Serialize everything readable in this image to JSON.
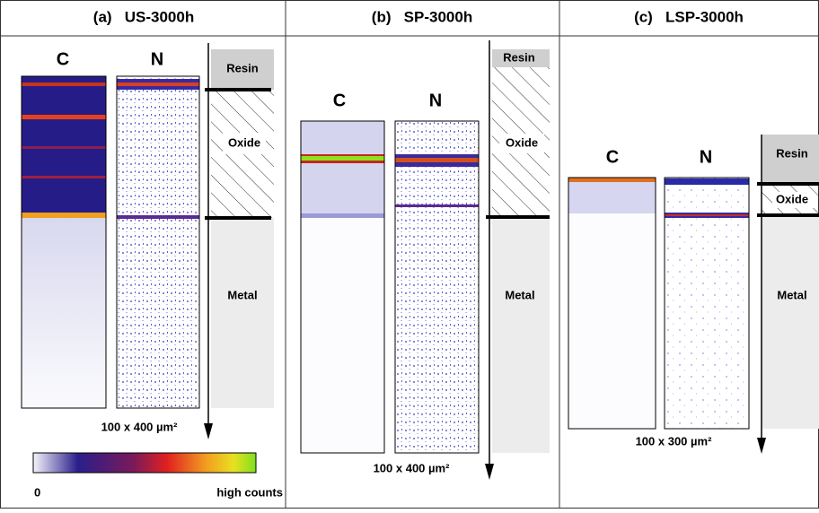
{
  "panels": [
    {
      "title": "(a)   US-3000h",
      "maps": [
        "C",
        "N"
      ],
      "layers": [
        "Resin",
        "Oxide",
        "Metal"
      ],
      "scale": "100 x 400 µm²"
    },
    {
      "title": "(b)   SP-3000h",
      "maps": [
        "C",
        "N"
      ],
      "layers": [
        "Resin",
        "Oxide",
        "Metal"
      ],
      "scale": "100 x 400 µm²"
    },
    {
      "title": "(c)   LSP-3000h",
      "maps": [
        "C",
        "N"
      ],
      "layers": [
        "Resin",
        "Oxide",
        "Metal"
      ],
      "scale": "100 x 300 µm²"
    }
  ],
  "colorbar": {
    "min_label": "0",
    "max_label": "high counts"
  }
}
